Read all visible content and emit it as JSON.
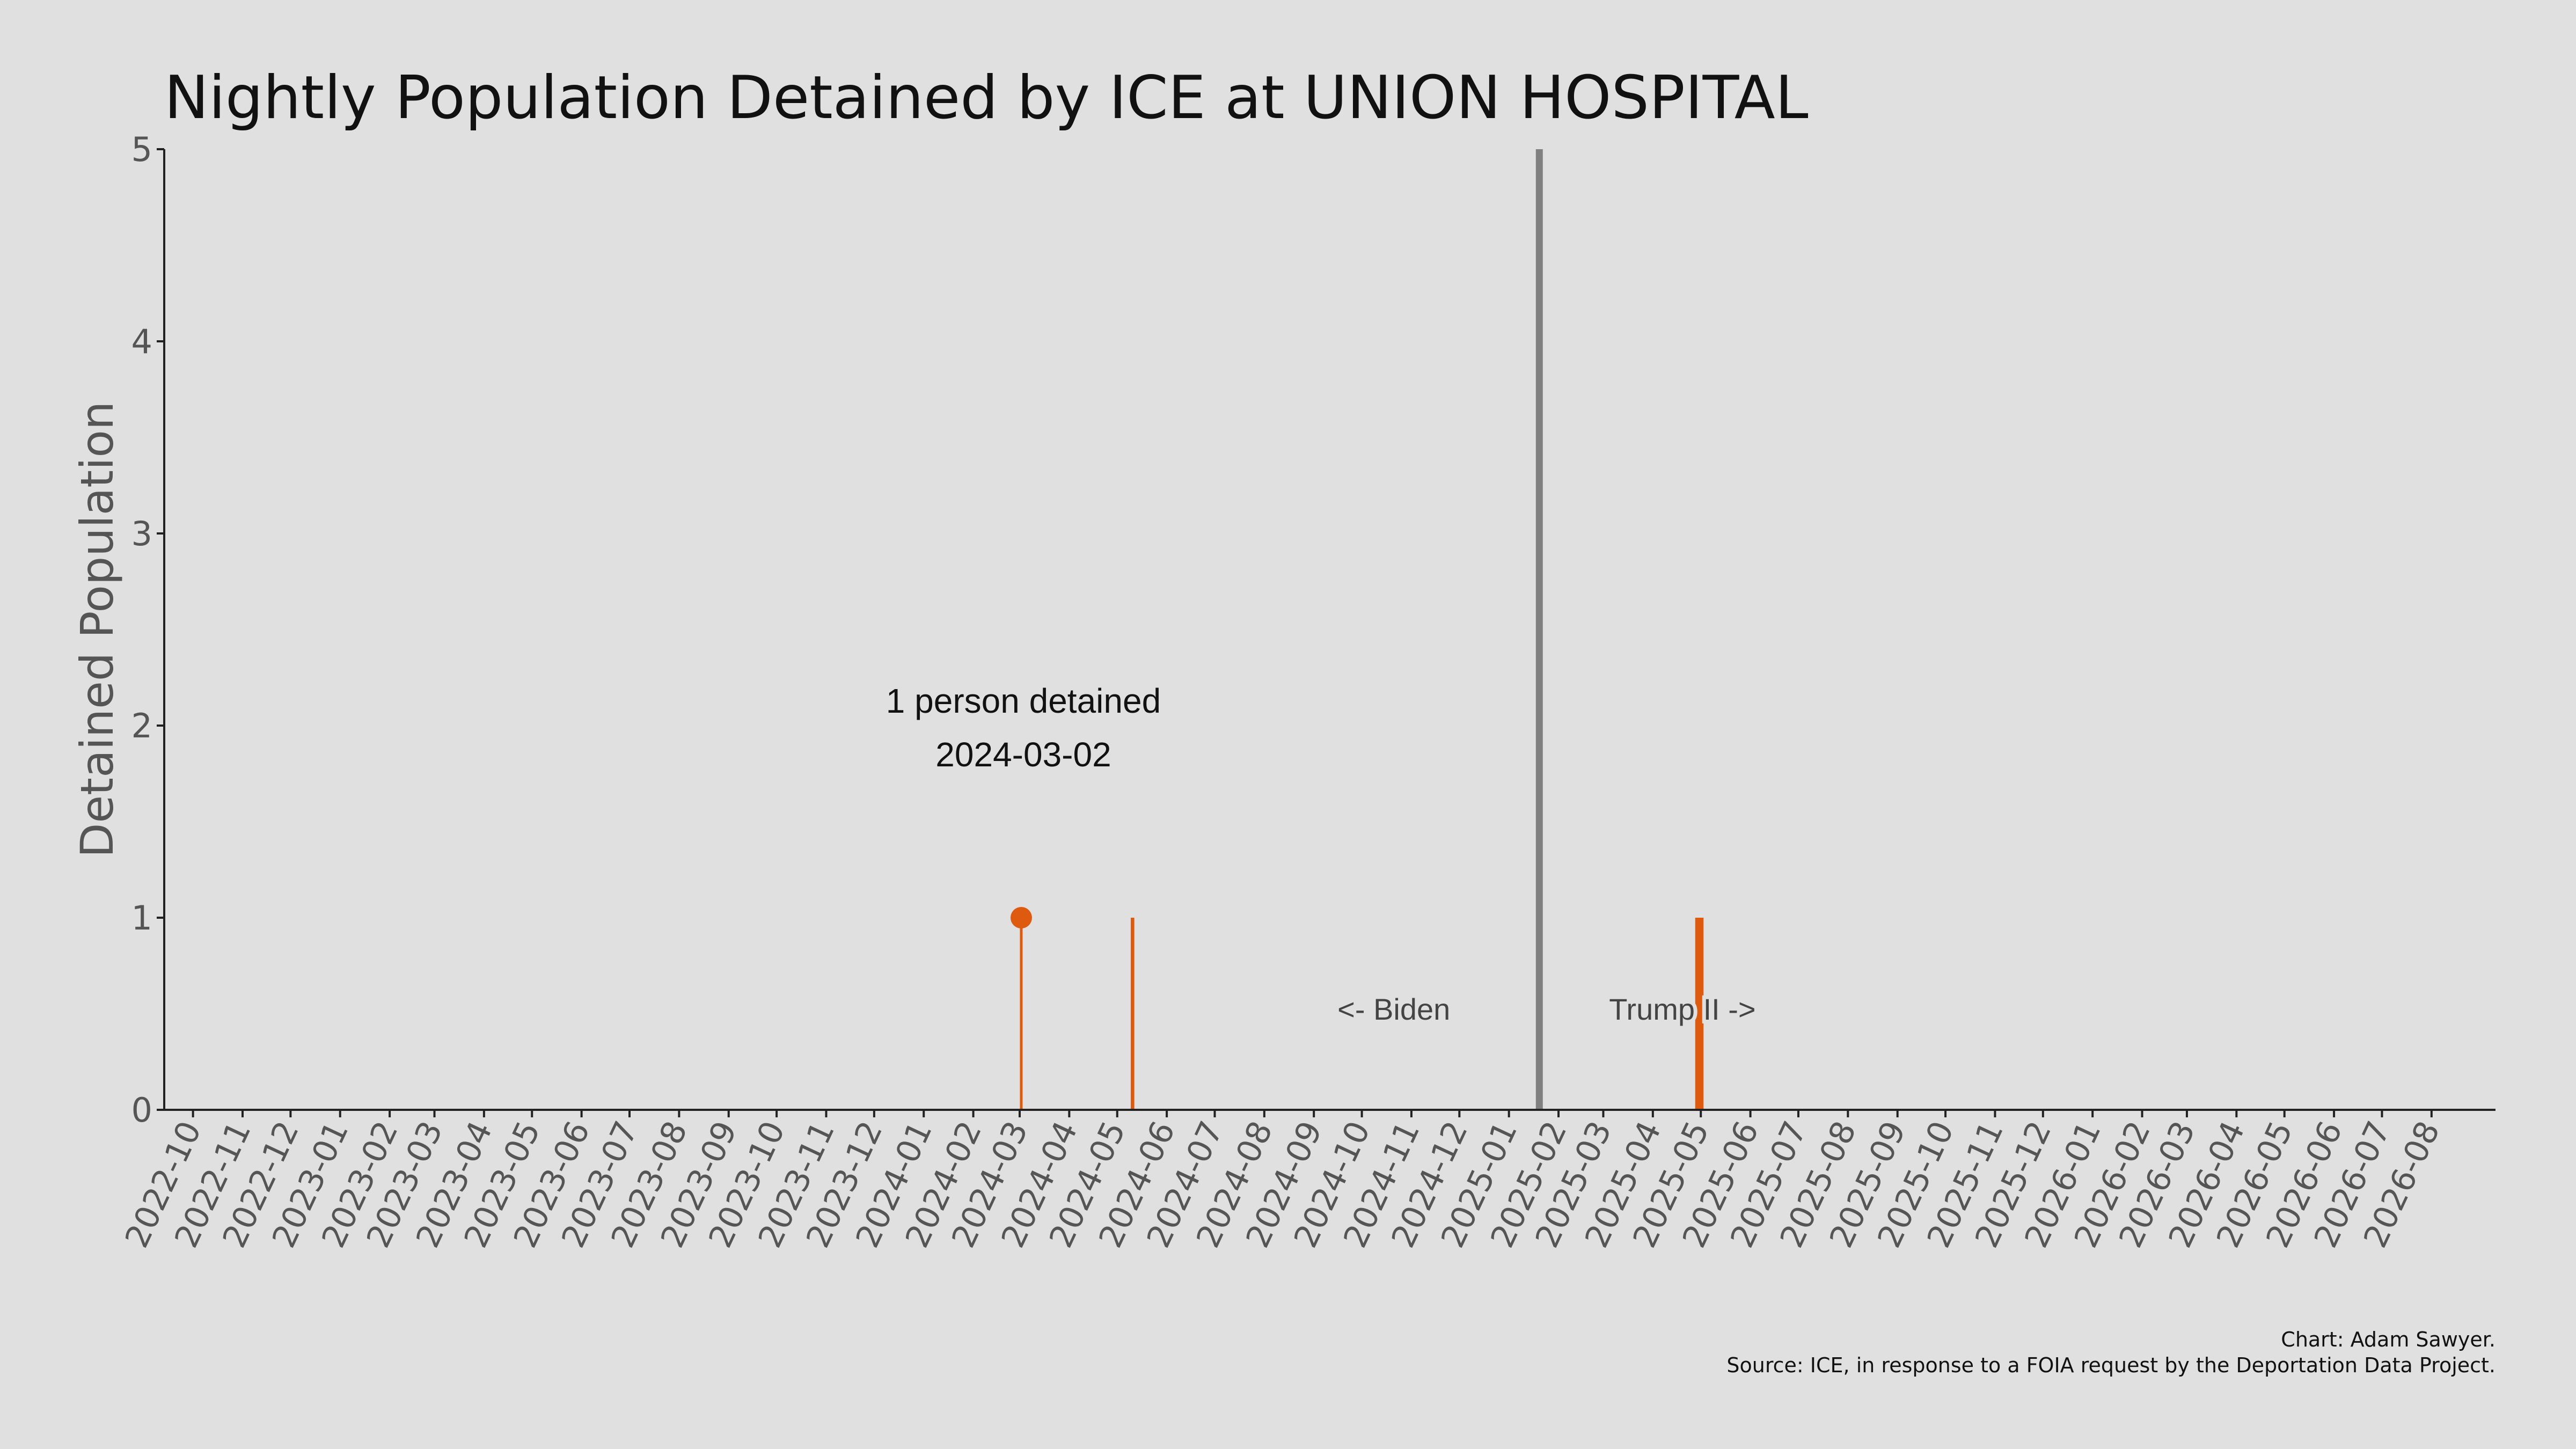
{
  "title": "Nightly Population Detained by ICE at UNION HOSPITAL",
  "credit": {
    "line1": "Chart: Adam Sawyer.",
    "line2": "Source: ICE, in response to a FOIA request by the Deportation Data Project."
  },
  "colors": {
    "background": "#e0e0e0",
    "bar": "#dd5a0e",
    "divider": "#808080",
    "axis": "#222222",
    "tick_label": "#555555"
  },
  "chart_data": {
    "type": "bar",
    "title": "Nightly Population Detained by ICE at UNION HOSPITAL",
    "xlabel": "",
    "ylabel": "Detained Population",
    "ylim": [
      0,
      5
    ],
    "xlim": [
      "2022-09-13",
      "2026-09-10"
    ],
    "y_ticks": [
      0,
      1,
      2,
      3,
      4,
      5
    ],
    "x_ticks": [
      "2022-10",
      "2022-11",
      "2022-12",
      "2023-01",
      "2023-02",
      "2023-03",
      "2023-04",
      "2023-05",
      "2023-06",
      "2023-07",
      "2023-08",
      "2023-09",
      "2023-10",
      "2023-11",
      "2023-12",
      "2024-01",
      "2024-02",
      "2024-03",
      "2024-04",
      "2024-05",
      "2024-06",
      "2024-07",
      "2024-08",
      "2024-09",
      "2024-10",
      "2024-11",
      "2024-12",
      "2025-01",
      "2025-02",
      "2025-03",
      "2025-04",
      "2025-05",
      "2025-06",
      "2025-07",
      "2025-08",
      "2025-09",
      "2025-10",
      "2025-11",
      "2025-12",
      "2026-01",
      "2026-02",
      "2026-03",
      "2026-04",
      "2026-05",
      "2026-06",
      "2026-07",
      "2026-08"
    ],
    "points": [
      {
        "date": "2024-03-02",
        "value": 1
      },
      {
        "date": "2024-05-10",
        "value": 1
      },
      {
        "date": "2024-05-11",
        "value": 1
      },
      {
        "date": "2025-04-28",
        "value": 1
      },
      {
        "date": "2025-04-29",
        "value": 1
      },
      {
        "date": "2025-04-30",
        "value": 1
      },
      {
        "date": "2025-05-01",
        "value": 1
      },
      {
        "date": "2025-05-02",
        "value": 1
      }
    ],
    "highlight": {
      "date": "2024-03-02",
      "value": 1,
      "label_line1": "1 person detained",
      "label_line2": "2024-03-02"
    },
    "divider_date": "2025-01-20",
    "era_labels": {
      "left": "<- Biden",
      "right": "Trump II ->"
    },
    "grid": false
  }
}
